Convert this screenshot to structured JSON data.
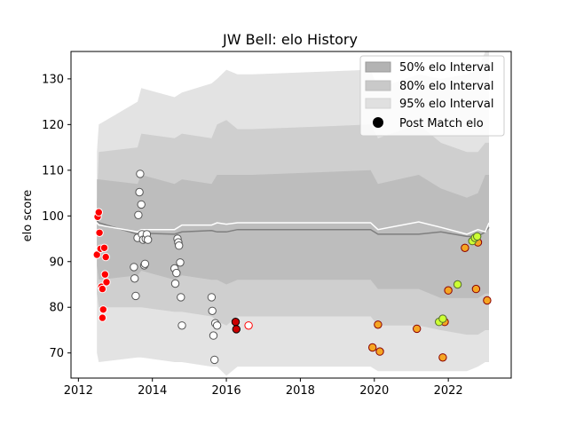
{
  "chart_data": {
    "type": "scatter",
    "title": "JW Bell: elo History",
    "xlabel": "",
    "ylabel": "elo score",
    "xlim": [
      2011.8,
      2023.7
    ],
    "ylim": [
      64.5,
      136
    ],
    "xticks": [
      2012,
      2014,
      2016,
      2018,
      2020,
      2022
    ],
    "yticks": [
      70,
      80,
      90,
      100,
      110,
      120,
      130
    ],
    "grid": false,
    "legend": {
      "placement": "top-right",
      "entries": [
        "50% elo Interval",
        "80% elo Interval",
        "95% elo Interval",
        "Post Match elo"
      ]
    },
    "colors": {
      "band95": "#e3e3e3",
      "band80": "#cfcfcf",
      "band50": "#bdbdbd",
      "mean_line": "#7f7f7f",
      "median_line": "#ffffff",
      "point_edge_red": "#ff0000",
      "point_edge_dark": "#555555"
    },
    "bands": {
      "x": [
        2012.5,
        2012.55,
        2013.6,
        2013.7,
        2014.6,
        2014.8,
        2015.6,
        2015.75,
        2016.0,
        2016.3,
        2016.7,
        2019.9,
        2020.1,
        2021.2,
        2021.8,
        2022.5,
        2022.8,
        2023.0,
        2023.1
      ],
      "upper95": [
        114,
        120,
        125,
        128,
        126,
        127,
        129,
        130,
        132,
        131,
        131,
        132,
        128,
        131,
        130,
        131,
        132,
        136,
        136
      ],
      "lower95": [
        70,
        68,
        69,
        69,
        68,
        68,
        67,
        67,
        65,
        67,
        67,
        67,
        66,
        66,
        66,
        66,
        67,
        68,
        68
      ],
      "upper80": [
        103,
        114,
        115,
        118,
        117,
        118,
        117,
        120,
        121,
        119,
        119,
        120,
        117,
        120,
        116,
        114,
        114,
        116,
        116
      ],
      "lower80": [
        83,
        80,
        80,
        80,
        79,
        79,
        78,
        77,
        76,
        78,
        78,
        78,
        76,
        76,
        75,
        74,
        74,
        75,
        75
      ],
      "upper50": [
        108,
        108,
        107,
        109,
        107,
        108,
        107,
        109,
        109,
        109,
        109,
        110,
        107,
        109,
        106,
        104,
        105,
        109,
        109
      ],
      "lower50": [
        89,
        86,
        87,
        88,
        86,
        87,
        86,
        86,
        85,
        86,
        86,
        86,
        84,
        84,
        82,
        82,
        82,
        83,
        83
      ],
      "mean": [
        99,
        98.5,
        96,
        96.2,
        96,
        96.5,
        96.8,
        96.5,
        96.5,
        97,
        97,
        97,
        96,
        96,
        96.5,
        95.5,
        95.5,
        96.5,
        97.5
      ],
      "median": [
        98.5,
        98,
        96.5,
        97,
        97,
        98,
        98,
        98.5,
        98.2,
        98.5,
        98.5,
        98.5,
        97,
        98.7,
        97.5,
        96,
        97,
        96.5,
        98.5
      ]
    },
    "series": [
      {
        "style": "red-edge-red-fill",
        "fill": "#ff0000",
        "edge": "#ffffff",
        "points": [
          [
            2012.5,
            91.5
          ],
          [
            2012.52,
            99.8
          ],
          [
            2012.55,
            100.8
          ],
          [
            2012.57,
            96.3
          ],
          [
            2012.6,
            92.8
          ],
          [
            2012.62,
            84.5
          ],
          [
            2012.65,
            77.7
          ],
          [
            2012.67,
            79.5
          ],
          [
            2012.7,
            93
          ],
          [
            2012.72,
            87.2
          ],
          [
            2012.74,
            91
          ],
          [
            2012.76,
            85.5
          ],
          [
            2012.65,
            84
          ]
        ]
      },
      {
        "style": "white-fill-grey-edge",
        "fill": "#ffffff",
        "edge": "#555555",
        "points": [
          [
            2013.5,
            88.8
          ],
          [
            2013.52,
            86.3
          ],
          [
            2013.55,
            82.5
          ],
          [
            2013.6,
            95.2
          ],
          [
            2013.62,
            100.2
          ],
          [
            2013.65,
            105.2
          ],
          [
            2013.67,
            109.2
          ],
          [
            2013.7,
            102.5
          ],
          [
            2013.72,
            96
          ],
          [
            2013.75,
            94.8
          ],
          [
            2013.78,
            89.2
          ],
          [
            2013.8,
            89.5
          ],
          [
            2013.82,
            95
          ],
          [
            2013.85,
            96
          ],
          [
            2013.88,
            94.8
          ],
          [
            2014.6,
            88.5
          ],
          [
            2014.62,
            85.2
          ],
          [
            2014.65,
            87.5
          ],
          [
            2014.68,
            95
          ],
          [
            2014.7,
            94.2
          ],
          [
            2014.72,
            93.5
          ],
          [
            2014.75,
            89.8
          ],
          [
            2014.77,
            82.2
          ],
          [
            2014.8,
            76
          ],
          [
            2015.6,
            82.2
          ],
          [
            2015.62,
            79.2
          ],
          [
            2015.65,
            73.8
          ],
          [
            2015.68,
            68.5
          ],
          [
            2015.7,
            76.5
          ],
          [
            2015.75,
            76
          ]
        ]
      },
      {
        "style": "dark-red",
        "fill": "#cc0000",
        "edge": "#000000",
        "points": [
          [
            2016.25,
            76.8
          ],
          [
            2016.27,
            75.2
          ]
        ]
      },
      {
        "style": "white-fill-red-edge",
        "fill": "#ffffff",
        "edge": "#ff0000",
        "points": [
          [
            2016.6,
            76
          ]
        ]
      },
      {
        "style": "orange",
        "fill": "#f5a623",
        "edge": "#8b0000",
        "points": [
          [
            2019.95,
            71.2
          ],
          [
            2020.1,
            76.2
          ],
          [
            2020.15,
            70.3
          ],
          [
            2021.15,
            75.3
          ],
          [
            2021.85,
            69
          ],
          [
            2021.9,
            76.8
          ],
          [
            2022.0,
            83.7
          ],
          [
            2022.45,
            93
          ],
          [
            2022.75,
            84
          ],
          [
            2022.8,
            94.2
          ],
          [
            2023.05,
            81.5
          ]
        ]
      },
      {
        "style": "yellow-green",
        "fill": "#ccff33",
        "edge": "#556b2f",
        "points": [
          [
            2021.75,
            76.8
          ],
          [
            2021.85,
            77.5
          ],
          [
            2022.25,
            85
          ],
          [
            2022.65,
            94.5
          ],
          [
            2022.72,
            95.2
          ],
          [
            2022.78,
            95.5
          ]
        ]
      }
    ]
  }
}
